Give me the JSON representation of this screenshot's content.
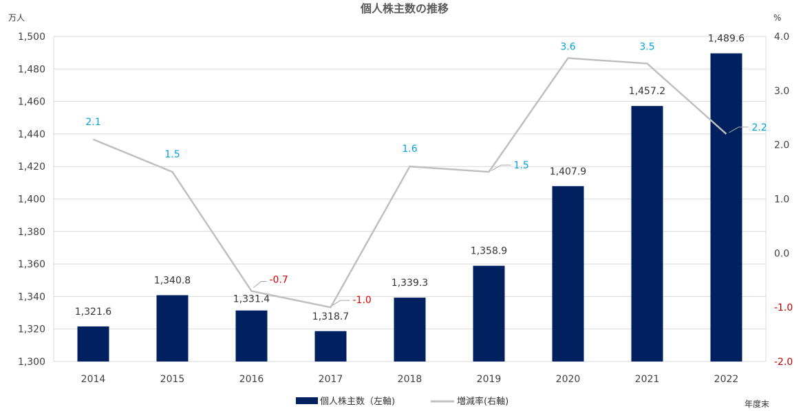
{
  "chart_data": {
    "type": "bar",
    "title": "個人株主数の推移",
    "left_unit": "万人",
    "right_unit": "%",
    "x_note": "年度末",
    "categories": [
      "2014",
      "2015",
      "2016",
      "2017",
      "2018",
      "2019",
      "2020",
      "2021",
      "2022"
    ],
    "series": [
      {
        "name": "個人株主数（左軸)",
        "type": "bar",
        "axis": "left",
        "color": "#002060",
        "values": [
          1321.6,
          1340.8,
          1331.4,
          1318.7,
          1339.3,
          1358.9,
          1407.9,
          1457.2,
          1489.6
        ],
        "labels": [
          "1,321.6",
          "1,340.8",
          "1,331.4",
          "1,318.7",
          "1,339.3",
          "1,358.9",
          "1,407.9",
          "1,457.2",
          "1,489.6"
        ]
      },
      {
        "name": "増減率(右軸)",
        "type": "line",
        "axis": "right",
        "color": "#bfbfbf",
        "values": [
          2.1,
          1.5,
          -0.7,
          -1.0,
          1.6,
          1.5,
          3.6,
          3.5,
          2.2
        ],
        "labels": [
          "2.1",
          "1.5",
          "-0.7",
          "-1.0",
          "1.6",
          "1.5",
          "3.6",
          "3.5",
          "2.2"
        ]
      }
    ],
    "ylim_left": [
      1300,
      1500
    ],
    "yticks_left": [
      "1,300",
      "1,320",
      "1,340",
      "1,360",
      "1,380",
      "1,400",
      "1,420",
      "1,440",
      "1,460",
      "1,480",
      "1,500"
    ],
    "ylim_right": [
      -2.0,
      4.0
    ],
    "yticks_right": [
      "-2.0",
      "-1.0",
      "0.0",
      "1.0",
      "2.0",
      "3.0",
      "4.0"
    ],
    "grid": true,
    "legend_position": "bottom",
    "colors": {
      "positive_label": "#00a0e0",
      "negative_label": "#e00000",
      "negative_tick": "#c00000"
    }
  }
}
